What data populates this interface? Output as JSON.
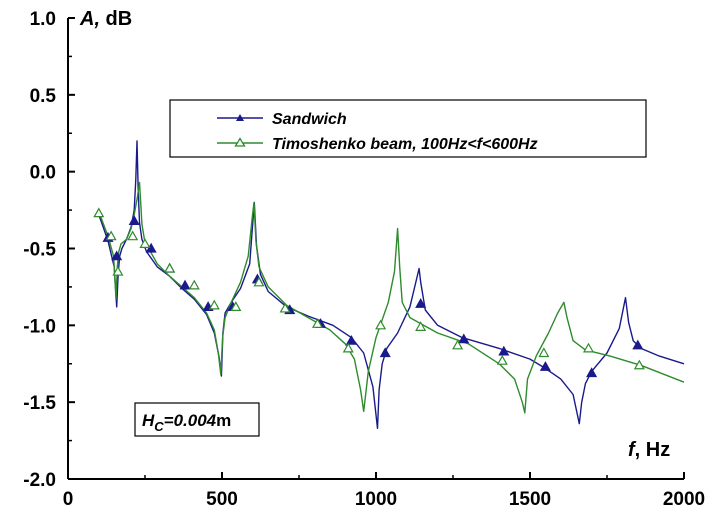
{
  "chart_data": {
    "type": "line",
    "xlabel_italic": "f",
    "xlabel_rest": ", Hz",
    "ylabel_italic": "A,",
    "ylabel_rest": " dB",
    "xlim": [
      0,
      2000
    ],
    "ylim": [
      -2.0,
      1.0
    ],
    "x_ticks": [
      0,
      500,
      1000,
      1500,
      2000
    ],
    "x_tick_labels": [
      "0",
      "500",
      "1000",
      "1500",
      "2000"
    ],
    "y_ticks": [
      1.0,
      0.5,
      0.0,
      -0.5,
      -1.0,
      -1.5,
      -2.0
    ],
    "y_tick_labels": [
      "1.0",
      "0.5",
      "0.0",
      "-0.5",
      "-1.0",
      "-1.5",
      "-2.0"
    ],
    "grid": false,
    "legend_position": "upper-center",
    "series": [
      {
        "name": "Sandwich",
        "color": "#1a1a8c",
        "marker": "filled-triangle",
        "x": [
          100,
          130,
          150,
          158,
          163,
          168,
          175,
          190,
          205,
          215,
          220,
          224,
          228,
          232,
          240,
          255,
          290,
          330,
          370,
          410,
          450,
          475,
          490,
          498,
          503,
          510,
          530,
          560,
          590,
          605,
          612,
          625,
          650,
          710,
          780,
          860,
          920,
          960,
          990,
          1005,
          1010,
          1020,
          1035,
          1070,
          1110,
          1140,
          1145,
          1160,
          1200,
          1280,
          1400,
          1500,
          1550,
          1600,
          1640,
          1660,
          1668,
          1680,
          1700,
          1750,
          1790,
          1810,
          1820,
          1835,
          1860,
          1920,
          2000
        ],
        "y": [
          -0.28,
          -0.45,
          -0.62,
          -0.88,
          -0.66,
          -0.55,
          -0.5,
          -0.44,
          -0.36,
          -0.25,
          -0.05,
          0.2,
          -0.12,
          -0.33,
          -0.44,
          -0.52,
          -0.62,
          -0.68,
          -0.76,
          -0.83,
          -0.93,
          -1.05,
          -1.2,
          -1.33,
          -1.05,
          -0.92,
          -0.85,
          -0.76,
          -0.6,
          -0.2,
          -0.48,
          -0.67,
          -0.78,
          -0.88,
          -0.94,
          -1.0,
          -1.08,
          -1.18,
          -1.4,
          -1.67,
          -1.42,
          -1.25,
          -1.15,
          -1.05,
          -0.88,
          -0.63,
          -0.72,
          -0.9,
          -1.0,
          -1.08,
          -1.15,
          -1.22,
          -1.28,
          -1.35,
          -1.45,
          -1.64,
          -1.5,
          -1.38,
          -1.3,
          -1.18,
          -1.02,
          -0.82,
          -0.98,
          -1.1,
          -1.15,
          -1.2,
          -1.25
        ],
        "marker_x": [
          130,
          158,
          215,
          270,
          330,
          380,
          455,
          535,
          615,
          720,
          820,
          920,
          1030,
          1145,
          1285,
          1415,
          1550,
          1700,
          1850
        ],
        "marker_y": [
          -0.43,
          -0.55,
          -0.32,
          -0.5,
          -0.63,
          -0.74,
          -0.88,
          -0.88,
          -0.7,
          -0.9,
          -0.99,
          -1.1,
          -1.18,
          -0.86,
          -1.09,
          -1.17,
          -1.27,
          -1.31,
          -1.13
        ]
      },
      {
        "name": "Timoshenko beam, 100Hz<f<600Hz",
        "color": "#2e8b2e",
        "marker": "open-triangle",
        "x": [
          100,
          130,
          148,
          156,
          160,
          165,
          172,
          190,
          205,
          215,
          225,
          232,
          236,
          240,
          248,
          262,
          290,
          330,
          370,
          410,
          450,
          475,
          488,
          496,
          502,
          510,
          530,
          560,
          585,
          598,
          604,
          610,
          620,
          650,
          710,
          780,
          850,
          900,
          930,
          950,
          960,
          975,
          1000,
          1040,
          1060,
          1070,
          1077,
          1085,
          1110,
          1200,
          1300,
          1400,
          1450,
          1475,
          1483,
          1492,
          1520,
          1560,
          1590,
          1610,
          1620,
          1640,
          1680,
          1760,
          1860,
          2000
        ],
        "y": [
          -0.26,
          -0.42,
          -0.55,
          -0.83,
          -0.62,
          -0.52,
          -0.47,
          -0.44,
          -0.37,
          -0.28,
          -0.17,
          -0.07,
          -0.2,
          -0.34,
          -0.44,
          -0.5,
          -0.6,
          -0.68,
          -0.75,
          -0.82,
          -0.92,
          -1.03,
          -1.18,
          -1.32,
          -1.08,
          -0.95,
          -0.85,
          -0.72,
          -0.55,
          -0.3,
          -0.2,
          -0.45,
          -0.62,
          -0.75,
          -0.87,
          -0.95,
          -1.03,
          -1.12,
          -1.22,
          -1.42,
          -1.56,
          -1.3,
          -1.08,
          -0.85,
          -0.65,
          -0.37,
          -0.62,
          -0.85,
          -0.95,
          -1.05,
          -1.12,
          -1.25,
          -1.35,
          -1.5,
          -1.57,
          -1.35,
          -1.2,
          -1.05,
          -0.92,
          -0.85,
          -0.95,
          -1.1,
          -1.16,
          -1.2,
          -1.26,
          -1.37
        ],
        "marker_x": [
          100,
          140,
          162,
          210,
          250,
          330,
          410,
          475,
          545,
          620,
          705,
          810,
          910,
          1015,
          1145,
          1265,
          1410,
          1545,
          1690,
          1855
        ],
        "marker_y": [
          -0.27,
          -0.42,
          -0.65,
          -0.42,
          -0.47,
          -0.63,
          -0.74,
          -0.87,
          -0.88,
          -0.72,
          -0.89,
          -0.99,
          -1.15,
          -1.0,
          -1.01,
          -1.13,
          -1.23,
          -1.18,
          -1.15,
          -1.26
        ]
      }
    ],
    "annotation": {
      "prefix": "H",
      "sub": "C",
      "value_italic": "=0.004",
      "unit": "m"
    }
  }
}
